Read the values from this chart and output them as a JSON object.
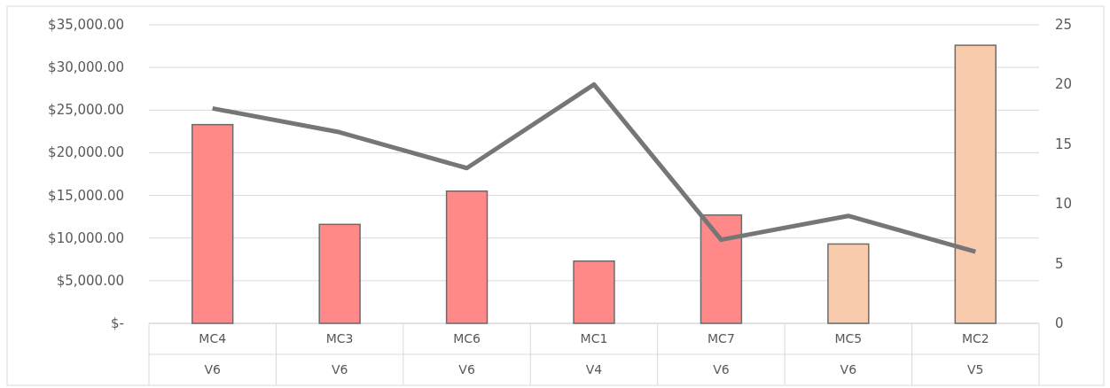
{
  "chart_data": {
    "type": "bar",
    "categories": [
      "MC4\nV6",
      "MC3\nV6",
      "MC6\nV6",
      "MC1\nV4",
      "MC7\nV6",
      "MC5\nV6",
      "MC2\nV5"
    ],
    "series": [
      {
        "values": [
          23300,
          11600,
          15500,
          7300,
          12700,
          9300,
          32600
        ],
        "colors": [
          "#ff8989",
          "#ff8989",
          "#ff8989",
          "#ff8989",
          "#ff8989",
          "#f8cbad",
          "#f8cbad"
        ]
      },
      {
        "type": "line",
        "axis": "y2",
        "color": "#767676",
        "values": [
          18,
          16,
          13,
          20,
          7,
          9,
          6
        ]
      }
    ],
    "ylim": [
      0,
      35000
    ],
    "yticks": [
      {
        "value": 0,
        "label": "$-"
      },
      {
        "value": 5000,
        "label": "$5,000.00"
      },
      {
        "value": 10000,
        "label": "$10,000.00"
      },
      {
        "value": 15000,
        "label": "$15,000.00"
      },
      {
        "value": 20000,
        "label": "$20,000.00"
      },
      {
        "value": 25000,
        "label": "$25,000.00"
      },
      {
        "value": 30000,
        "label": "$30,000.00"
      },
      {
        "value": 35000,
        "label": "$35,000.00"
      }
    ],
    "y2lim": [
      0,
      25
    ],
    "y2ticks": [
      0,
      5,
      10,
      15,
      20,
      25
    ],
    "grid": "y",
    "marker": "none"
  }
}
